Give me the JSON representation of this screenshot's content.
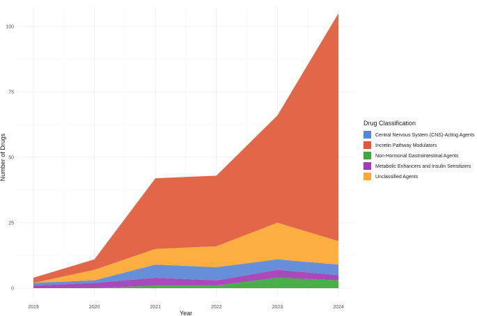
{
  "chart_data": {
    "type": "area",
    "stacked": true,
    "xlabel": "Year",
    "ylabel": "Number of Drugs",
    "x": [
      2019,
      2020,
      2021,
      2022,
      2023,
      2024
    ],
    "x_ticks": [
      "2019",
      "2020",
      "2021",
      "2022",
      "2023",
      "2024"
    ],
    "y_ticks": [
      "0",
      "25",
      "50",
      "75",
      "100"
    ],
    "ylim": [
      0,
      105
    ],
    "grid": true,
    "legend_position": "right",
    "legend_title": "Drug Classification",
    "series": [
      {
        "name": "Non-Hormonal Gastrointestinal Agents",
        "color": "#3aa83a",
        "values": [
          0,
          0,
          1,
          1,
          4,
          3
        ]
      },
      {
        "name": "Metabolic Enhancers and Insulin Sensitizers",
        "color": "#a23bb5",
        "values": [
          1,
          2,
          3,
          2,
          3,
          2
        ]
      },
      {
        "name": "Central Nervous System (CNS)-Acting Agents",
        "color": "#5a86d6",
        "values": [
          1,
          1,
          5,
          5,
          4,
          4
        ]
      },
      {
        "name": "Unclassified Agents",
        "color": "#fca830",
        "values": [
          0,
          4,
          6,
          8,
          14,
          9
        ]
      },
      {
        "name": "Incretin Pathway Modulators",
        "color": "#e05a3a",
        "values": [
          2,
          4,
          27,
          27,
          41,
          87
        ]
      }
    ],
    "legend_order": [
      "Central Nervous System (CNS)-Acting Agents",
      "Incretin Pathway Modulators",
      "Non-Hormonal Gastrointestinal Agents",
      "Metabolic Enhancers and Insulin Sensitizers",
      "Unclassified Agents"
    ]
  }
}
